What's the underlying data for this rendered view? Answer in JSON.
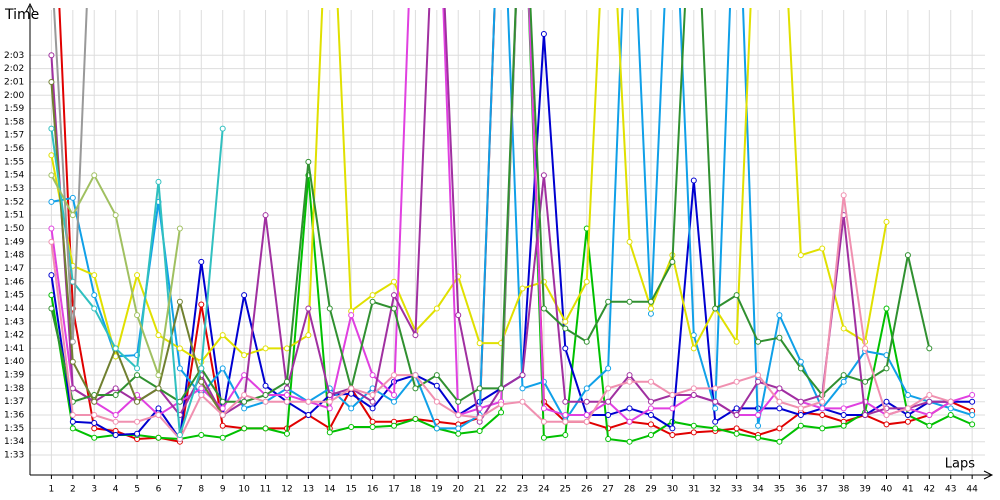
{
  "chart_data": {
    "type": "line",
    "y_label": "Time",
    "x_label": "Laps",
    "grid": true,
    "x": [
      1,
      2,
      3,
      4,
      5,
      6,
      7,
      8,
      9,
      10,
      11,
      12,
      13,
      14,
      15,
      16,
      17,
      18,
      19,
      20,
      21,
      22,
      23,
      24,
      25,
      26,
      27,
      28,
      29,
      30,
      31,
      32,
      33,
      34,
      35,
      36,
      37,
      38,
      39,
      40,
      41,
      42,
      43,
      44
    ],
    "xlim": [
      0,
      44.6
    ],
    "ylim": [
      91.5,
      126.4
    ],
    "xticks": [
      1,
      2,
      3,
      4,
      5,
      6,
      7,
      8,
      9,
      10,
      11,
      12,
      13,
      14,
      15,
      16,
      17,
      18,
      19,
      20,
      21,
      22,
      23,
      24,
      25,
      26,
      27,
      28,
      29,
      30,
      31,
      32,
      33,
      34,
      35,
      36,
      37,
      38,
      39,
      40,
      41,
      42,
      43,
      44
    ],
    "yticks": [
      {
        "value": 93,
        "label": "1:33"
      },
      {
        "value": 94,
        "label": "1:34"
      },
      {
        "value": 95,
        "label": "1:35"
      },
      {
        "value": 96,
        "label": "1:36"
      },
      {
        "value": 97,
        "label": "1:37"
      },
      {
        "value": 98,
        "label": "1:38"
      },
      {
        "value": 99,
        "label": "1:39"
      },
      {
        "value": 100,
        "label": "1:40"
      },
      {
        "value": 101,
        "label": "1:41"
      },
      {
        "value": 102,
        "label": "1:42"
      },
      {
        "value": 103,
        "label": "1:43"
      },
      {
        "value": 104,
        "label": "1:44"
      },
      {
        "value": 105,
        "label": "1:45"
      },
      {
        "value": 106,
        "label": "1:46"
      },
      {
        "value": 107,
        "label": "1:47"
      },
      {
        "value": 108,
        "label": "1:48"
      },
      {
        "value": 109,
        "label": "1:49"
      },
      {
        "value": 110,
        "label": "1:50"
      },
      {
        "value": 111,
        "label": "1:51"
      },
      {
        "value": 112,
        "label": "1:52"
      },
      {
        "value": 113,
        "label": "1:53"
      },
      {
        "value": 114,
        "label": "1:54"
      },
      {
        "value": 115,
        "label": "1:55"
      },
      {
        "value": 116,
        "label": "1:56"
      },
      {
        "value": 117,
        "label": "1:57"
      },
      {
        "value": 118,
        "label": "1:58"
      },
      {
        "value": 119,
        "label": "1:59"
      },
      {
        "value": 120,
        "label": "2:00"
      },
      {
        "value": 121,
        "label": "2:01"
      },
      {
        "value": 122,
        "label": "2:02"
      },
      {
        "value": 123,
        "label": "2:03"
      }
    ],
    "series": [
      {
        "color": "#e00000",
        "values": [
          140,
          104,
          95,
          94.8,
          94.2,
          94.3,
          94,
          104.3,
          95.2,
          95,
          95,
          95,
          96,
          95,
          98,
          95.5,
          95.5,
          95.7,
          95.5,
          95.3,
          95.8,
          140,
          140,
          97,
          95.5,
          95.5,
          95,
          95.5,
          95.3,
          94.5,
          94.7,
          94.8,
          95,
          94.5,
          95,
          96.2,
          96,
          95.5,
          96,
          95.3,
          95.5,
          96,
          97,
          96.3
        ]
      },
      {
        "color": "#00c000",
        "values": [
          105,
          95,
          94.3,
          94.5,
          94.5,
          94.3,
          94.2,
          94.5,
          94.3,
          95,
          95,
          94.6,
          114,
          94.7,
          95.1,
          95.1,
          95.2,
          95.7,
          95,
          94.6,
          94.8,
          96.2,
          140,
          94.3,
          94.5,
          110,
          94.2,
          94,
          94.5,
          95.5,
          95.2,
          95,
          94.6,
          94.3,
          94,
          95.2,
          95,
          95.2,
          96.2,
          104,
          96,
          95.2,
          96,
          95.3
        ]
      },
      {
        "color": "#0000d0",
        "values": [
          106.5,
          95.5,
          95.4,
          94.5,
          94.6,
          96.5,
          94.2,
          107.5,
          96,
          105,
          98.2,
          97,
          96,
          97.5,
          97.6,
          96.5,
          98.5,
          99,
          98.2,
          96,
          97,
          98,
          99,
          124.6,
          101,
          96,
          96,
          96.5,
          96,
          95,
          113.6,
          95.5,
          96.5,
          96.5,
          96.5,
          96,
          96.5,
          96,
          96,
          97,
          96,
          97,
          97,
          97
        ]
      },
      {
        "color": "#10a0e8",
        "values": [
          112,
          112.3,
          105,
          100.4,
          100.5,
          112,
          99.5,
          97.5,
          99.5,
          96.5,
          97,
          98,
          97,
          98,
          96.5,
          98,
          97,
          99,
          95,
          95,
          96,
          140,
          98,
          98.5,
          95.6,
          98,
          99.5,
          140,
          103.6,
          140,
          102,
          96.5,
          140,
          95.2,
          103.5,
          100,
          96.5,
          98.5,
          100.8,
          100.5,
          97.5,
          97,
          96.5,
          96
        ]
      },
      {
        "color": "#e0e000",
        "values": [
          115.5,
          107.2,
          106.5,
          100.4,
          106.5,
          102,
          101,
          100,
          102,
          100.5,
          101,
          101,
          102,
          140,
          103.8,
          105,
          106,
          102.3,
          104,
          106.4,
          101.4,
          101.4,
          105.5,
          106,
          103,
          106,
          140,
          109,
          104,
          108,
          101,
          104,
          101.5,
          140,
          140,
          108,
          108.5,
          102.5,
          101.5,
          110.5,
          null,
          null,
          null,
          null
        ]
      },
      {
        "color": "#e040e0",
        "values": [
          110,
          98,
          97,
          96,
          97.5,
          96,
          97,
          98,
          96.5,
          99,
          97.5,
          97.5,
          97,
          96.5,
          103.5,
          99,
          97.5,
          140,
          140,
          96,
          96.5,
          97,
          140,
          96.5,
          96,
          96,
          97,
          95.5,
          96.5,
          96.5,
          97.5,
          97,
          96,
          96,
          98,
          97,
          96.5,
          96.5,
          97,
          96,
          96.5,
          96,
          97,
          97.5
        ]
      },
      {
        "color": "#a030a0",
        "values": [
          123,
          98,
          97,
          98,
          97,
          98,
          96,
          99,
          96,
          97,
          111,
          98,
          104,
          97.5,
          98,
          97,
          105,
          102,
          140,
          103.5,
          95.5,
          98,
          99,
          114,
          97,
          97,
          97,
          99,
          97,
          97.5,
          97.5,
          97,
          96,
          98.5,
          98,
          97,
          97.5,
          111,
          96,
          96.5,
          96.5,
          97,
          97,
          null
        ]
      },
      {
        "color": "#309030",
        "values": [
          104,
          97,
          97.5,
          97.5,
          99,
          98,
          97,
          99.5,
          97,
          97,
          97.5,
          98.5,
          115,
          104,
          98,
          104.5,
          104,
          98,
          99,
          97,
          98,
          98,
          140,
          104,
          102.5,
          101.5,
          104.5,
          104.5,
          104.5,
          107.5,
          140,
          104,
          105,
          101.5,
          101.8,
          99.5,
          97.5,
          99,
          98.5,
          99.5,
          108,
          101,
          null,
          null
        ]
      },
      {
        "color": "#708030",
        "values": [
          121,
          100,
          97,
          101,
          97,
          98,
          104.5,
          98.5,
          96,
          null,
          null,
          null,
          null,
          null,
          null,
          null,
          null,
          null,
          null,
          null,
          null,
          null,
          null,
          null,
          null,
          null,
          null,
          null,
          null,
          null,
          null,
          null,
          null,
          null,
          null,
          null,
          null,
          null,
          null,
          null,
          null,
          null,
          null,
          null
        ]
      },
      {
        "color": "#f090b0",
        "values": [
          109,
          96,
          96,
          95.5,
          95.5,
          96,
          94.2,
          97.5,
          96,
          97.5,
          97,
          97,
          97,
          97,
          98,
          97.5,
          99,
          99,
          97,
          96,
          95.8,
          96.8,
          97,
          95.5,
          95.5,
          95.5,
          98,
          98.5,
          98.5,
          97.5,
          98,
          98,
          98.5,
          99,
          97,
          96.5,
          97,
          112.5,
          101,
          96,
          96.5,
          97.5,
          97,
          null
        ]
      },
      {
        "color": "#30c0c0",
        "values": [
          117.5,
          106,
          104,
          101,
          99.5,
          113.5,
          94.5,
          99.5,
          117.5,
          null,
          null,
          null,
          null,
          null,
          null,
          null,
          null,
          null,
          null,
          null,
          null,
          null,
          null,
          null,
          null,
          null,
          null,
          null,
          null,
          null,
          null,
          null,
          null,
          null,
          null,
          null,
          null,
          null,
          null,
          null,
          null,
          null,
          null,
          null
        ]
      },
      {
        "color": "#999999",
        "values": [
          130,
          101.5,
          140,
          null,
          null,
          null,
          null,
          null,
          null,
          null,
          null,
          null,
          null,
          null,
          null,
          null,
          null,
          null,
          null,
          null,
          null,
          null,
          null,
          null,
          null,
          null,
          null,
          null,
          null,
          null,
          null,
          null,
          null,
          null,
          null,
          null,
          null,
          null,
          null,
          null,
          null,
          null,
          null,
          null
        ]
      },
      {
        "color": "#a0c060",
        "values": [
          114,
          111,
          114,
          111,
          103.5,
          99,
          110,
          null,
          null,
          null,
          null,
          null,
          null,
          null,
          null,
          null,
          null,
          null,
          null,
          null,
          null,
          null,
          null,
          null,
          null,
          null,
          null,
          null,
          null,
          null,
          null,
          null,
          null,
          null,
          null,
          null,
          null,
          null,
          null,
          null,
          null,
          null,
          null,
          null
        ]
      }
    ]
  }
}
